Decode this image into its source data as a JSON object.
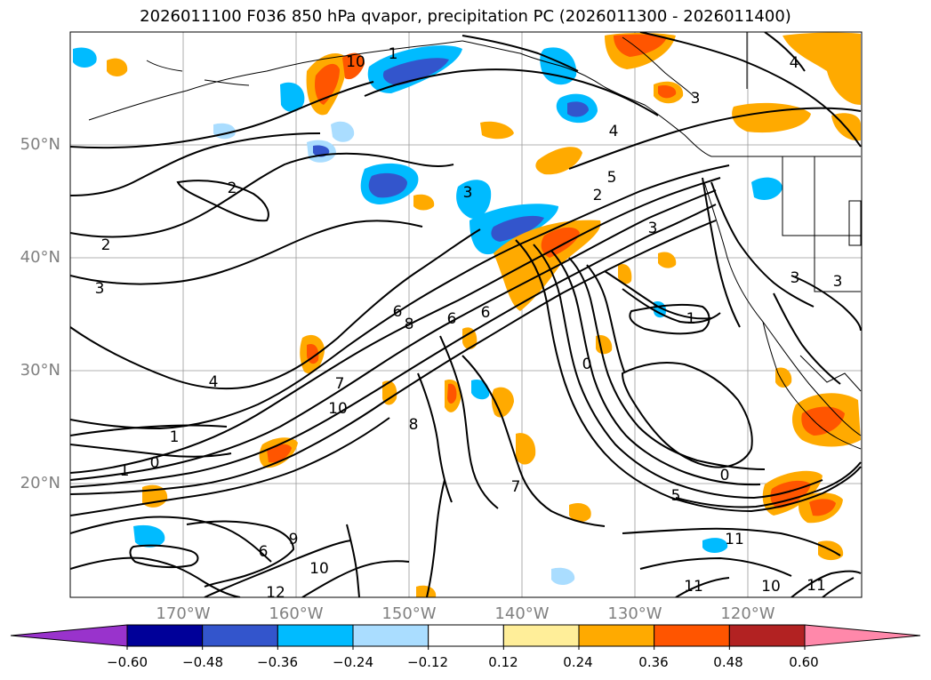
{
  "title": "2026011100 F036 850 hPa qvapor, precipitation PC (2026011300 - 2026011400)",
  "map": {
    "latitude_labels": [
      "50°N",
      "40°N",
      "30°N",
      "20°N"
    ],
    "longitude_labels": [
      "170°W",
      "160°W",
      "150°W",
      "140°W",
      "130°W",
      "120°W"
    ],
    "gridlines": true,
    "contour_color": "#000000",
    "contour_labels": [
      "0",
      "1",
      "1",
      "1",
      "2",
      "2",
      "2",
      "3",
      "3",
      "3",
      "3",
      "3",
      "3",
      "4",
      "4",
      "4",
      "5",
      "5",
      "6",
      "6",
      "6",
      "6",
      "7",
      "7",
      "8",
      "8",
      "9",
      "10",
      "10",
      "10",
      "10",
      "11",
      "11",
      "11",
      "12",
      "0",
      "1",
      "0"
    ]
  },
  "colorbar": {
    "tick_labels": [
      "−0.60",
      "−0.48",
      "−0.36",
      "−0.24",
      "−0.12",
      "0.12",
      "0.24",
      "0.36",
      "0.48",
      "0.60"
    ],
    "colors": [
      "#9933cc",
      "#000099",
      "#3355cc",
      "#00bbff",
      "#aaddff",
      "#ffffff",
      "#ffee99",
      "#ffaa00",
      "#ff5500",
      "#b22222",
      "#ff88aa"
    ],
    "extend": "both"
  }
}
